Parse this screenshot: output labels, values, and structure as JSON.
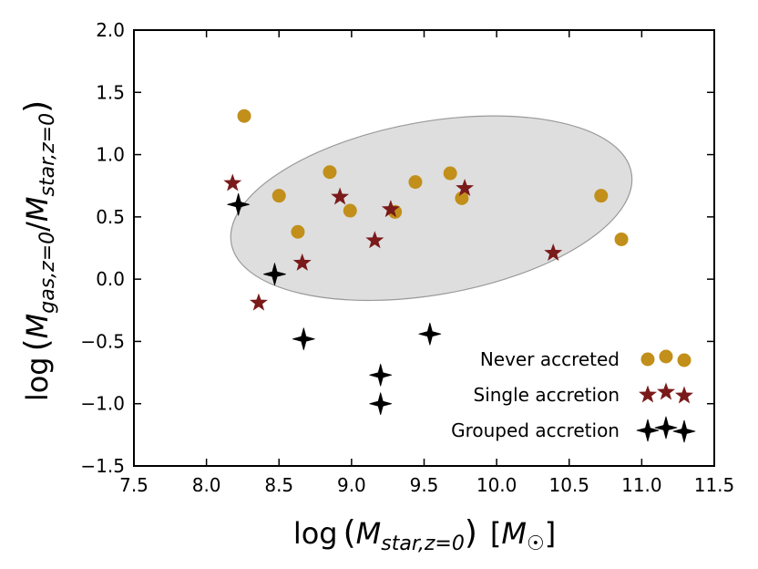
{
  "chart_data": {
    "type": "scatter",
    "xlabel": "log(M_star,z=0) [M☉]",
    "ylabel": "log(M_gas,z=0 / M_star,z=0)",
    "xlim": [
      7.5,
      11.5
    ],
    "ylim": [
      -1.5,
      2.0
    ],
    "xticks": [
      "7.5",
      "8.0",
      "8.5",
      "9.0",
      "9.5",
      "10.0",
      "10.5",
      "11.0",
      "11.5"
    ],
    "yticks": [
      "2.0",
      "1.5",
      "1.0",
      "0.5",
      "0.0",
      "−0.5",
      "−1.0",
      "−1.5"
    ],
    "grid": false,
    "legend_position": "bottom-right",
    "shaded_region": {
      "shape": "ellipse",
      "color": "#d3d3d3",
      "center": [
        9.55,
        0.57
      ],
      "x_range": [
        8.15,
        10.95
      ],
      "y_range": [
        -0.12,
        1.27
      ]
    },
    "series": [
      {
        "name": "Never accreted",
        "marker": "circle",
        "color": "#c18f1a",
        "points": [
          [
            8.26,
            1.31
          ],
          [
            8.5,
            0.67
          ],
          [
            8.63,
            0.38
          ],
          [
            8.85,
            0.86
          ],
          [
            8.99,
            0.55
          ],
          [
            9.3,
            0.54
          ],
          [
            9.44,
            0.78
          ],
          [
            9.68,
            0.85
          ],
          [
            9.76,
            0.65
          ],
          [
            10.72,
            0.67
          ],
          [
            10.86,
            0.32
          ]
        ]
      },
      {
        "name": "Single accretion",
        "marker": "star",
        "color": "#7a1a1a",
        "points": [
          [
            8.18,
            0.77
          ],
          [
            8.36,
            -0.19
          ],
          [
            8.66,
            0.13
          ],
          [
            8.92,
            0.66
          ],
          [
            9.16,
            0.31
          ],
          [
            9.27,
            0.56
          ],
          [
            9.78,
            0.73
          ],
          [
            10.39,
            0.21
          ]
        ]
      },
      {
        "name": "Grouped accretion",
        "marker": "diamond-star",
        "color": "#000000",
        "points": [
          [
            8.22,
            0.6
          ],
          [
            8.47,
            0.04
          ],
          [
            8.67,
            -0.48
          ],
          [
            9.2,
            -0.77
          ],
          [
            9.2,
            -1.0
          ],
          [
            9.54,
            -0.44
          ]
        ]
      }
    ]
  }
}
